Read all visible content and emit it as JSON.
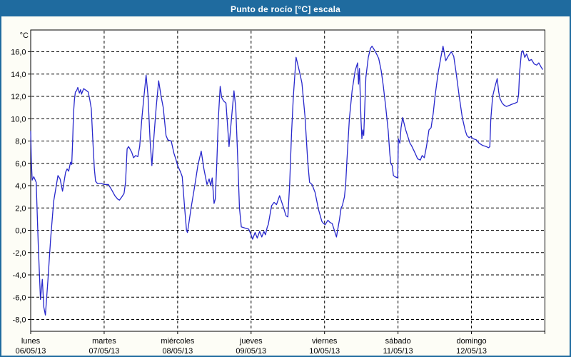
{
  "window": {
    "title": "Punto de rocío [°C] escala"
  },
  "colors": {
    "titlebar": "#1F6B9F",
    "window_border": "#1F6B9F",
    "window_bg": "#FDFDF6",
    "plot_bg": "#FFFFFF",
    "axis": "#000000",
    "grid": "#000000",
    "line": "#2828CC",
    "label_text": "#000000"
  },
  "chart_data": {
    "type": "line",
    "title": "Punto de rocío [°C] escala",
    "ylabel": "°C",
    "y_unit_label": "°C",
    "yticks": [
      16,
      14,
      12,
      10,
      8,
      6,
      4,
      2,
      0,
      -2,
      -4,
      -6,
      -8
    ],
    "ytick_label_format": "decimal-comma one place, e.g. 16,0",
    "ylim": [
      -9.05,
      17.95
    ],
    "grid": "dashed",
    "legend": "none",
    "x_range_hours": [
      0,
      168
    ],
    "x_day_width_hours": 24,
    "days": [
      {
        "weekday": "lunes",
        "date": "06/05/13"
      },
      {
        "weekday": "martes",
        "date": "07/05/13"
      },
      {
        "weekday": "miércoles",
        "date": "08/05/13"
      },
      {
        "weekday": "jueves",
        "date": "09/05/13"
      },
      {
        "weekday": "viernes",
        "date": "10/05/13"
      },
      {
        "weekday": "sábado",
        "date": "11/05/13"
      },
      {
        "weekday": "domingo",
        "date": "12/05/13"
      }
    ],
    "series": [
      {
        "name": "Punto de rocío",
        "units": "°C",
        "x_units": "hours since lunes 06/05/13 00:00",
        "points": [
          [
            0,
            8.9
          ],
          [
            0.2,
            6.2
          ],
          [
            0.5,
            4.5
          ],
          [
            1,
            4.8
          ],
          [
            1.8,
            4.3
          ],
          [
            2.5,
            -1.5
          ],
          [
            3.2,
            -6.2
          ],
          [
            3.8,
            -4.4
          ],
          [
            4.3,
            -6.9
          ],
          [
            4.8,
            -7.6
          ],
          [
            5.6,
            -4.6
          ],
          [
            6.5,
            -0.8
          ],
          [
            7.5,
            2.6
          ],
          [
            8.9,
            4.9
          ],
          [
            9.6,
            4.6
          ],
          [
            10.4,
            3.5
          ],
          [
            11.4,
            5.2
          ],
          [
            11.9,
            5.5
          ],
          [
            12.4,
            5.3
          ],
          [
            13,
            6.1
          ],
          [
            13.4,
            5.9
          ],
          [
            13.7,
            8
          ],
          [
            14,
            10.5
          ],
          [
            14.3,
            11.7
          ],
          [
            14.6,
            12.4
          ],
          [
            15,
            12.5
          ],
          [
            15.4,
            12.8
          ],
          [
            15.9,
            12.3
          ],
          [
            16.3,
            12.6
          ],
          [
            16.6,
            12.2
          ],
          [
            17.3,
            12.7
          ],
          [
            17.8,
            12.6
          ],
          [
            18.3,
            12.5
          ],
          [
            18.8,
            12.4
          ],
          [
            19.3,
            11.7
          ],
          [
            19.8,
            10.9
          ],
          [
            20.3,
            8
          ],
          [
            20.8,
            5.5
          ],
          [
            21.2,
            4.4
          ],
          [
            21.8,
            4.2
          ],
          [
            23,
            4.2
          ],
          [
            24,
            4.1
          ],
          [
            25.4,
            4.1
          ],
          [
            26.5,
            3.6
          ],
          [
            27.5,
            3.1
          ],
          [
            28.4,
            2.8
          ],
          [
            29,
            2.7
          ],
          [
            29.8,
            3
          ],
          [
            30.5,
            3.3
          ],
          [
            31,
            4.3
          ],
          [
            31.5,
            7.3
          ],
          [
            32,
            7.5
          ],
          [
            33,
            7
          ],
          [
            33.6,
            6.5
          ],
          [
            34.3,
            6.7
          ],
          [
            35,
            6.6
          ],
          [
            35.6,
            7.5
          ],
          [
            36.3,
            10
          ],
          [
            37,
            12
          ],
          [
            37.7,
            13.9
          ],
          [
            38.3,
            12.1
          ],
          [
            39,
            8
          ],
          [
            39.6,
            5.8
          ],
          [
            40.3,
            8.5
          ],
          [
            41,
            11
          ],
          [
            41.8,
            13.4
          ],
          [
            42.6,
            12
          ],
          [
            43.3,
            11
          ],
          [
            44.2,
            8.5
          ],
          [
            44.8,
            8.1
          ],
          [
            45.9,
            8
          ],
          [
            46.8,
            6.9
          ],
          [
            47.5,
            6.3
          ],
          [
            48,
            5.8
          ],
          [
            49,
            5.2
          ],
          [
            49.5,
            4.8
          ],
          [
            50.3,
            2
          ],
          [
            50.9,
            0
          ],
          [
            51.2,
            -0.2
          ],
          [
            51.6,
            0.5
          ],
          [
            52.4,
            2
          ],
          [
            53.6,
            4
          ],
          [
            54.6,
            5.8
          ],
          [
            55.7,
            7.1
          ],
          [
            56.6,
            5.5
          ],
          [
            57.6,
            4.1
          ],
          [
            58.3,
            4.6
          ],
          [
            58.8,
            4
          ],
          [
            59.3,
            4.7
          ],
          [
            59.9,
            2.4
          ],
          [
            60.3,
            2.8
          ],
          [
            60.8,
            6.1
          ],
          [
            61.3,
            10
          ],
          [
            61.9,
            12.9
          ],
          [
            62.4,
            11.9
          ],
          [
            63,
            11.6
          ],
          [
            63.8,
            11.4
          ],
          [
            64.8,
            7.5
          ],
          [
            65.6,
            10
          ],
          [
            66.4,
            12.5
          ],
          [
            67,
            11
          ],
          [
            67.6,
            6.7
          ],
          [
            68.2,
            2
          ],
          [
            68.8,
            0.3
          ],
          [
            70,
            0.2
          ],
          [
            71.2,
            0.1
          ],
          [
            72,
            -0.4
          ],
          [
            72.5,
            -0.8
          ],
          [
            73.3,
            -0.2
          ],
          [
            74,
            -0.7
          ],
          [
            74.8,
            -0.1
          ],
          [
            75.5,
            -0.6
          ],
          [
            76.2,
            -0.1
          ],
          [
            76.7,
            -0.4
          ],
          [
            77.3,
            0.3
          ],
          [
            77.6,
            0.5
          ],
          [
            78.7,
            2.2
          ],
          [
            79.5,
            2.5
          ],
          [
            80.3,
            2.3
          ],
          [
            81.3,
            3.1
          ],
          [
            82.4,
            2.2
          ],
          [
            83.4,
            1.3
          ],
          [
            84,
            1.2
          ],
          [
            84.6,
            4.1
          ],
          [
            85.2,
            8.6
          ],
          [
            85.8,
            12
          ],
          [
            86.7,
            15.5
          ],
          [
            87.3,
            14.8
          ],
          [
            87.9,
            14.1
          ],
          [
            88.6,
            13.2
          ],
          [
            89.6,
            10.2
          ],
          [
            90.5,
            6.2
          ],
          [
            91.1,
            4.3
          ],
          [
            91.9,
            4.1
          ],
          [
            92.9,
            3.4
          ],
          [
            94,
            1.9
          ],
          [
            95.1,
            0.8
          ],
          [
            95.7,
            0.6
          ],
          [
            96.2,
            0.5
          ],
          [
            97.1,
            0.9
          ],
          [
            97.8,
            0.7
          ],
          [
            98.5,
            0.6
          ],
          [
            99.3,
            -0.1
          ],
          [
            99.9,
            -0.6
          ],
          [
            100.9,
            1
          ],
          [
            101.4,
            2
          ],
          [
            101.8,
            2.2
          ],
          [
            102.5,
            3
          ],
          [
            102.9,
            4.1
          ],
          [
            103.3,
            6.2
          ],
          [
            104.1,
            10
          ],
          [
            105,
            12.5
          ],
          [
            106,
            14.3
          ],
          [
            106.8,
            15
          ],
          [
            107.1,
            13.1
          ],
          [
            107.4,
            14.5
          ],
          [
            107.9,
            10
          ],
          [
            108.2,
            8.2
          ],
          [
            108.5,
            9
          ],
          [
            108.8,
            8.5
          ],
          [
            109.5,
            13.7
          ],
          [
            110.3,
            15.5
          ],
          [
            111,
            16.3
          ],
          [
            111.5,
            16.5
          ],
          [
            112.2,
            16.2
          ],
          [
            113,
            15.8
          ],
          [
            113.7,
            15.4
          ],
          [
            114.5,
            14.3
          ],
          [
            115.2,
            12.9
          ],
          [
            116,
            11
          ],
          [
            116.8,
            8.9
          ],
          [
            117.3,
            6.9
          ],
          [
            117.6,
            6
          ],
          [
            118.1,
            5.8
          ],
          [
            118.5,
            4.9
          ],
          [
            119,
            4.8
          ],
          [
            119.9,
            4.7
          ],
          [
            120.1,
            8.2
          ],
          [
            120.6,
            7.8
          ],
          [
            121,
            9.2
          ],
          [
            121.5,
            10.1
          ],
          [
            122.5,
            9
          ],
          [
            123.9,
            7.8
          ],
          [
            124.4,
            7.6
          ],
          [
            125.6,
            6.9
          ],
          [
            126.4,
            6.4
          ],
          [
            127.3,
            6.3
          ],
          [
            127.9,
            6.7
          ],
          [
            128.6,
            6.5
          ],
          [
            129.3,
            7.5
          ],
          [
            130.1,
            9
          ],
          [
            130.8,
            9.2
          ],
          [
            131.5,
            10.5
          ],
          [
            132.1,
            12
          ],
          [
            133.1,
            14.1
          ],
          [
            134,
            15.5
          ],
          [
            134.7,
            16.5
          ],
          [
            135.6,
            15.2
          ],
          [
            136.4,
            15.6
          ],
          [
            137.4,
            16
          ],
          [
            138.2,
            15.6
          ],
          [
            139,
            14.1
          ],
          [
            140,
            12
          ],
          [
            141,
            10.1
          ],
          [
            141.9,
            9
          ],
          [
            142.5,
            8.5
          ],
          [
            143.2,
            8.3
          ],
          [
            143.7,
            8.4
          ],
          [
            144.6,
            8.2
          ],
          [
            145.6,
            8.1
          ],
          [
            146.5,
            7.8
          ],
          [
            147.7,
            7.6
          ],
          [
            148.8,
            7.5
          ],
          [
            149.6,
            7.4
          ],
          [
            150,
            7.5
          ],
          [
            150.3,
            9.9
          ],
          [
            150.9,
            12
          ],
          [
            151.6,
            12.8
          ],
          [
            152.4,
            13.6
          ],
          [
            152.9,
            12.4
          ],
          [
            153.3,
            11.8
          ],
          [
            154,
            11.4
          ],
          [
            154.7,
            11.2
          ],
          [
            155.4,
            11.1
          ],
          [
            156.4,
            11.2
          ],
          [
            157.3,
            11.3
          ],
          [
            158.3,
            11.4
          ],
          [
            159,
            11.5
          ],
          [
            159.4,
            12.2
          ],
          [
            159.7,
            14.1
          ],
          [
            160.3,
            15.9
          ],
          [
            160.8,
            16.1
          ],
          [
            161.4,
            15.5
          ],
          [
            162,
            15.8
          ],
          [
            162.8,
            15.2
          ],
          [
            163.6,
            15.3
          ],
          [
            164.5,
            14.9
          ],
          [
            165.3,
            14.8
          ],
          [
            166,
            15
          ],
          [
            166.8,
            14.6
          ],
          [
            167.3,
            14.4
          ]
        ]
      }
    ]
  }
}
